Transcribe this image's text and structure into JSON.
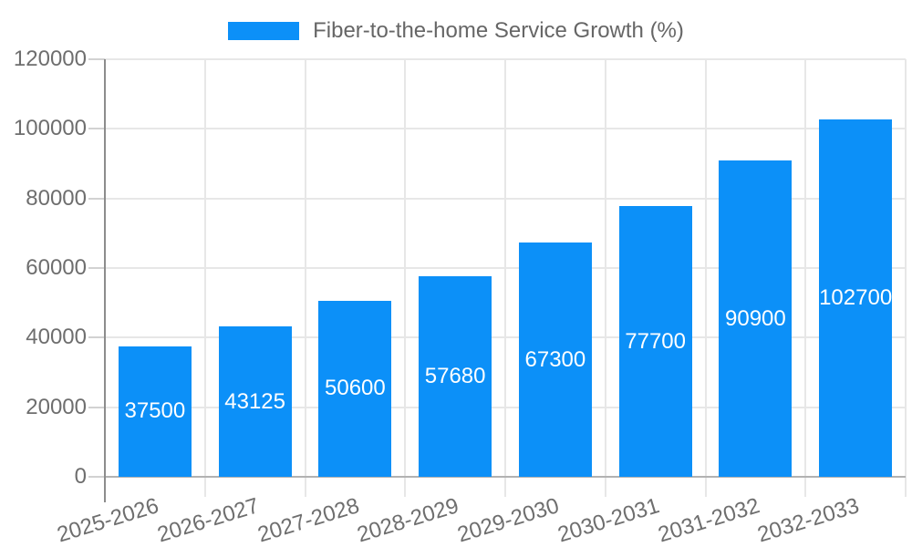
{
  "legend": {
    "label": "Fiber-to-the-home Service Growth (%)",
    "swatch_color": "#0c90f8"
  },
  "chart_data": {
    "type": "bar",
    "title": "Fiber-to-the-home Service Growth (%)",
    "categories": [
      "2025-2026",
      "2026-2027",
      "2027-2028",
      "2028-2029",
      "2029-2030",
      "2030-2031",
      "2031-2032",
      "2032-2033"
    ],
    "values": [
      37500,
      43125,
      50600,
      57680,
      67300,
      77700,
      90900,
      102700
    ],
    "series": [
      {
        "name": "Fiber-to-the-home Service Growth (%)",
        "values": [
          37500,
          43125,
          50600,
          57680,
          67300,
          77700,
          90900,
          102700
        ]
      }
    ],
    "xlabel": "",
    "ylabel": "",
    "ylim": [
      0,
      120000
    ],
    "yticks": [
      0,
      20000,
      40000,
      60000,
      80000,
      100000,
      120000
    ],
    "grid": true,
    "legend_position": "top-center",
    "bar_color": "#0c90f8",
    "bar_label_color": "#ffffff",
    "axis_text_color": "#6e6e6e",
    "x_label_rotation_deg": -17
  }
}
